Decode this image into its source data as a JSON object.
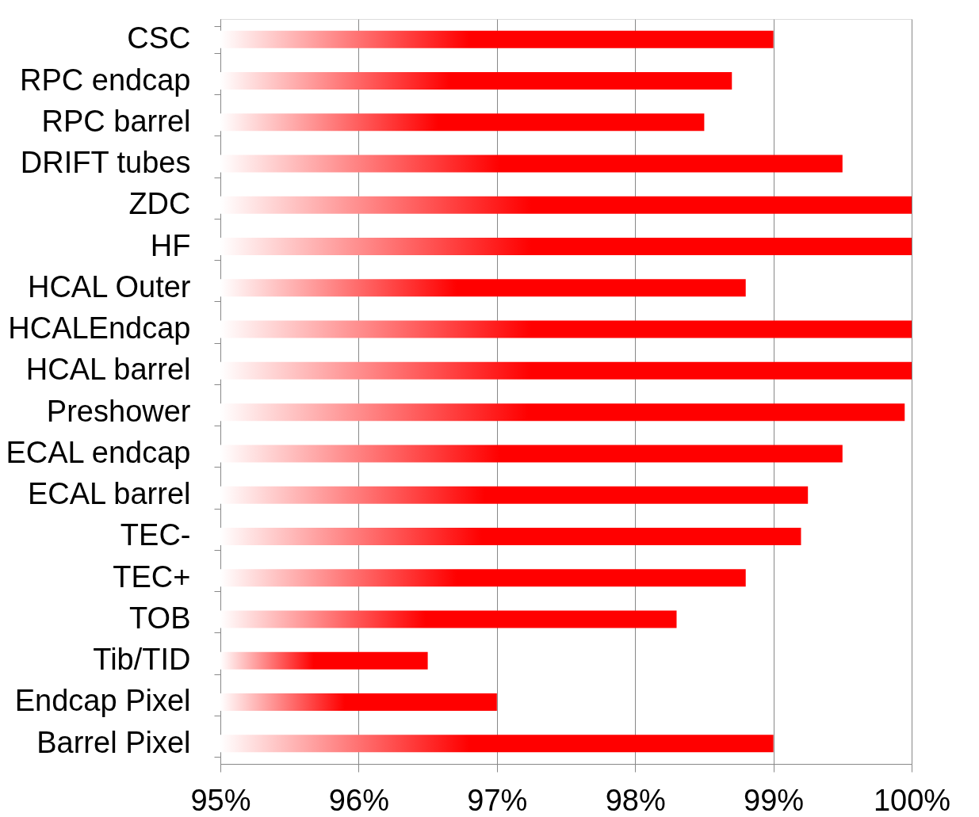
{
  "chart_data": {
    "type": "bar",
    "orientation": "horizontal",
    "categories": [
      "CSC",
      "RPC endcap",
      "RPC barrel",
      "DRIFT tubes",
      "ZDC",
      "HF",
      "HCAL Outer",
      "HCALEndcap",
      "HCAL barrel",
      "Preshower",
      "ECAL endcap",
      "ECAL barrel",
      "TEC-",
      "TEC+",
      "TOB",
      "Tib/TID",
      "Endcap Pixel",
      "Barrel Pixel"
    ],
    "values": [
      99.0,
      98.7,
      98.5,
      99.5,
      100,
      100,
      98.8,
      100,
      100,
      99.95,
      99.5,
      99.25,
      99.2,
      98.8,
      98.3,
      96.5,
      97.0,
      99.0
    ],
    "color": "#ff0000",
    "xlim": [
      95,
      100
    ],
    "xticks": [
      {
        "value": 95,
        "label": "95%"
      },
      {
        "value": 96,
        "label": "96%"
      },
      {
        "value": 97,
        "label": "97%"
      },
      {
        "value": 98,
        "label": "98%"
      },
      {
        "value": 99,
        "label": "99%"
      },
      {
        "value": 100,
        "label": "100%"
      }
    ],
    "grid": "x"
  }
}
